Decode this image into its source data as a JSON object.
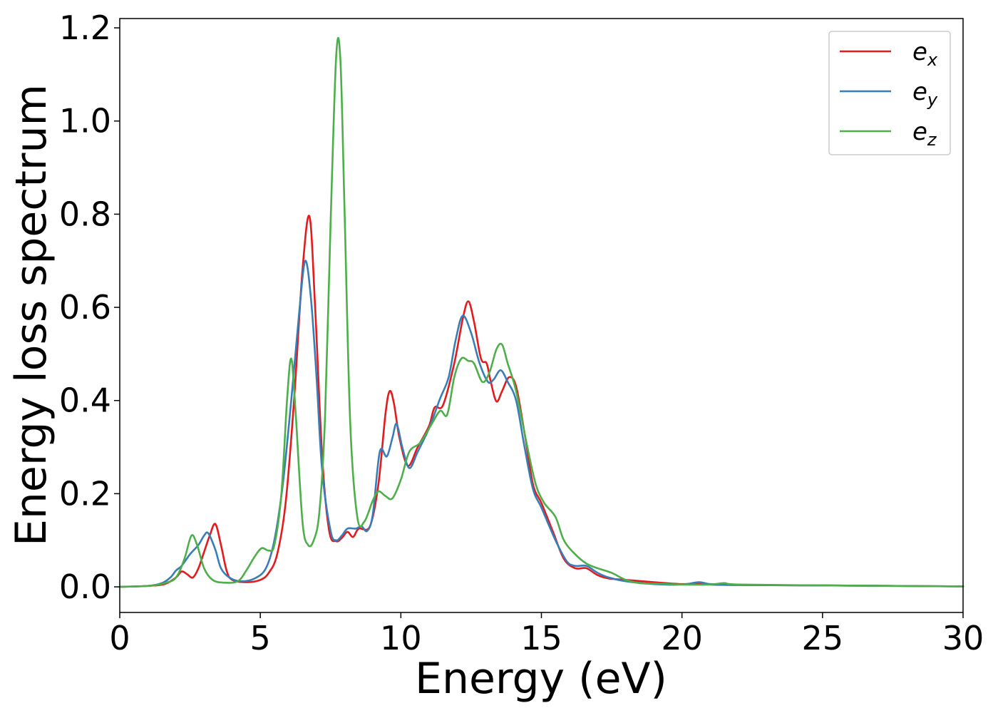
{
  "chart_data": {
    "type": "line",
    "title": "",
    "xlabel": "Energy (eV)",
    "ylabel": "Energy loss spectrum",
    "xlim": [
      0,
      30
    ],
    "ylim": [
      -0.055,
      1.22
    ],
    "x_ticks": [
      0,
      5,
      10,
      15,
      20,
      25,
      30
    ],
    "x_tick_labels": [
      "0",
      "5",
      "10",
      "15",
      "20",
      "25",
      "30"
    ],
    "y_ticks": [
      0.0,
      0.2,
      0.4,
      0.6,
      0.8,
      1.0,
      1.2
    ],
    "y_tick_labels": [
      "0.0",
      "0.2",
      "0.4",
      "0.6",
      "0.8",
      "1.0",
      "1.2"
    ],
    "grid": false,
    "legend_position": "top-right",
    "series": [
      {
        "name_base": "e",
        "name_sub": "x",
        "color": "#e41a1c",
        "points": [
          [
            0,
            0
          ],
          [
            1,
            0.002
          ],
          [
            1.6,
            0.006
          ],
          [
            2.0,
            0.02
          ],
          [
            2.2,
            0.033
          ],
          [
            2.4,
            0.027
          ],
          [
            2.6,
            0.02
          ],
          [
            2.8,
            0.04
          ],
          [
            3.0,
            0.075
          ],
          [
            3.2,
            0.11
          ],
          [
            3.4,
            0.135
          ],
          [
            3.6,
            0.09
          ],
          [
            3.8,
            0.035
          ],
          [
            4.0,
            0.015
          ],
          [
            4.5,
            0.01
          ],
          [
            5.0,
            0.015
          ],
          [
            5.3,
            0.03
          ],
          [
            5.6,
            0.07
          ],
          [
            5.9,
            0.18
          ],
          [
            6.2,
            0.4
          ],
          [
            6.5,
            0.68
          ],
          [
            6.75,
            0.795
          ],
          [
            6.95,
            0.6
          ],
          [
            7.2,
            0.28
          ],
          [
            7.45,
            0.12
          ],
          [
            7.7,
            0.098
          ],
          [
            7.9,
            0.105
          ],
          [
            8.1,
            0.118
          ],
          [
            8.3,
            0.107
          ],
          [
            8.5,
            0.125
          ],
          [
            8.9,
            0.13
          ],
          [
            9.2,
            0.22
          ],
          [
            9.45,
            0.37
          ],
          [
            9.6,
            0.42
          ],
          [
            9.75,
            0.395
          ],
          [
            9.95,
            0.32
          ],
          [
            10.25,
            0.26
          ],
          [
            10.6,
            0.3
          ],
          [
            11.0,
            0.345
          ],
          [
            11.2,
            0.385
          ],
          [
            11.5,
            0.39
          ],
          [
            11.9,
            0.48
          ],
          [
            12.2,
            0.575
          ],
          [
            12.4,
            0.613
          ],
          [
            12.6,
            0.57
          ],
          [
            12.85,
            0.49
          ],
          [
            13.05,
            0.48
          ],
          [
            13.2,
            0.44
          ],
          [
            13.4,
            0.398
          ],
          [
            13.6,
            0.42
          ],
          [
            13.85,
            0.45
          ],
          [
            14.1,
            0.43
          ],
          [
            14.4,
            0.33
          ],
          [
            14.7,
            0.22
          ],
          [
            15.0,
            0.18
          ],
          [
            15.4,
            0.12
          ],
          [
            15.8,
            0.06
          ],
          [
            16.2,
            0.04
          ],
          [
            16.6,
            0.04
          ],
          [
            17.0,
            0.025
          ],
          [
            17.4,
            0.018
          ],
          [
            18.0,
            0.015
          ],
          [
            19.0,
            0.01
          ],
          [
            20.0,
            0.006
          ],
          [
            20.6,
            0.008
          ],
          [
            21.0,
            0.005
          ],
          [
            22.0,
            0.004
          ],
          [
            25.0,
            0.003
          ],
          [
            30.0,
            0.001
          ]
        ]
      },
      {
        "name_base": "e",
        "name_sub": "y",
        "color": "#377eb8",
        "points": [
          [
            0,
            0
          ],
          [
            1,
            0.002
          ],
          [
            1.5,
            0.008
          ],
          [
            1.8,
            0.02
          ],
          [
            2.0,
            0.035
          ],
          [
            2.2,
            0.045
          ],
          [
            2.5,
            0.07
          ],
          [
            2.8,
            0.09
          ],
          [
            3.0,
            0.11
          ],
          [
            3.15,
            0.115
          ],
          [
            3.4,
            0.08
          ],
          [
            3.6,
            0.04
          ],
          [
            3.9,
            0.02
          ],
          [
            4.3,
            0.012
          ],
          [
            4.8,
            0.018
          ],
          [
            5.2,
            0.04
          ],
          [
            5.5,
            0.1
          ],
          [
            5.8,
            0.22
          ],
          [
            6.1,
            0.4
          ],
          [
            6.4,
            0.6
          ],
          [
            6.6,
            0.7
          ],
          [
            6.8,
            0.62
          ],
          [
            7.0,
            0.45
          ],
          [
            7.2,
            0.25
          ],
          [
            7.5,
            0.12
          ],
          [
            7.7,
            0.1
          ],
          [
            7.9,
            0.11
          ],
          [
            8.1,
            0.125
          ],
          [
            8.4,
            0.125
          ],
          [
            8.6,
            0.13
          ],
          [
            8.8,
            0.12
          ],
          [
            9.0,
            0.155
          ],
          [
            9.25,
            0.29
          ],
          [
            9.5,
            0.28
          ],
          [
            9.7,
            0.32
          ],
          [
            9.85,
            0.35
          ],
          [
            10.05,
            0.3
          ],
          [
            10.3,
            0.255
          ],
          [
            10.6,
            0.29
          ],
          [
            11.0,
            0.34
          ],
          [
            11.4,
            0.405
          ],
          [
            11.7,
            0.45
          ],
          [
            11.95,
            0.53
          ],
          [
            12.2,
            0.582
          ],
          [
            12.5,
            0.545
          ],
          [
            12.8,
            0.48
          ],
          [
            13.1,
            0.44
          ],
          [
            13.3,
            0.445
          ],
          [
            13.55,
            0.465
          ],
          [
            13.8,
            0.44
          ],
          [
            14.1,
            0.4
          ],
          [
            14.4,
            0.3
          ],
          [
            14.7,
            0.21
          ],
          [
            15.0,
            0.17
          ],
          [
            15.5,
            0.1
          ],
          [
            15.9,
            0.055
          ],
          [
            16.2,
            0.045
          ],
          [
            16.6,
            0.045
          ],
          [
            17.0,
            0.03
          ],
          [
            17.4,
            0.02
          ],
          [
            18.0,
            0.012
          ],
          [
            19.0,
            0.006
          ],
          [
            20.0,
            0.005
          ],
          [
            20.6,
            0.01
          ],
          [
            21.0,
            0.006
          ],
          [
            22.0,
            0.004
          ],
          [
            25.0,
            0.003
          ],
          [
            30.0,
            0.001
          ]
        ]
      },
      {
        "name_base": "e",
        "name_sub": "z",
        "color": "#4daf4a",
        "points": [
          [
            0,
            0
          ],
          [
            1.0,
            0.002
          ],
          [
            1.6,
            0.008
          ],
          [
            2.0,
            0.02
          ],
          [
            2.3,
            0.06
          ],
          [
            2.55,
            0.11
          ],
          [
            2.75,
            0.09
          ],
          [
            3.0,
            0.04
          ],
          [
            3.3,
            0.015
          ],
          [
            3.7,
            0.009
          ],
          [
            4.2,
            0.012
          ],
          [
            4.5,
            0.035
          ],
          [
            4.8,
            0.065
          ],
          [
            5.05,
            0.083
          ],
          [
            5.3,
            0.078
          ],
          [
            5.5,
            0.09
          ],
          [
            5.75,
            0.2
          ],
          [
            5.95,
            0.4
          ],
          [
            6.1,
            0.49
          ],
          [
            6.25,
            0.38
          ],
          [
            6.5,
            0.14
          ],
          [
            6.7,
            0.09
          ],
          [
            6.9,
            0.1
          ],
          [
            7.1,
            0.16
          ],
          [
            7.3,
            0.36
          ],
          [
            7.5,
            0.78
          ],
          [
            7.7,
            1.14
          ],
          [
            7.85,
            1.13
          ],
          [
            8.0,
            0.8
          ],
          [
            8.2,
            0.35
          ],
          [
            8.45,
            0.15
          ],
          [
            8.7,
            0.14
          ],
          [
            9.0,
            0.185
          ],
          [
            9.2,
            0.205
          ],
          [
            9.45,
            0.195
          ],
          [
            9.7,
            0.19
          ],
          [
            10.0,
            0.23
          ],
          [
            10.3,
            0.29
          ],
          [
            10.7,
            0.31
          ],
          [
            11.1,
            0.35
          ],
          [
            11.4,
            0.378
          ],
          [
            11.65,
            0.37
          ],
          [
            11.9,
            0.45
          ],
          [
            12.15,
            0.49
          ],
          [
            12.4,
            0.485
          ],
          [
            12.6,
            0.48
          ],
          [
            12.9,
            0.44
          ],
          [
            13.15,
            0.46
          ],
          [
            13.4,
            0.51
          ],
          [
            13.6,
            0.52
          ],
          [
            13.8,
            0.48
          ],
          [
            14.1,
            0.42
          ],
          [
            14.5,
            0.3
          ],
          [
            14.8,
            0.22
          ],
          [
            15.1,
            0.18
          ],
          [
            15.5,
            0.15
          ],
          [
            15.8,
            0.1
          ],
          [
            16.2,
            0.07
          ],
          [
            16.6,
            0.05
          ],
          [
            17.0,
            0.04
          ],
          [
            17.5,
            0.03
          ],
          [
            18.0,
            0.015
          ],
          [
            18.5,
            0.008
          ],
          [
            19.0,
            0.007
          ],
          [
            20.0,
            0.005
          ],
          [
            21.0,
            0.005
          ],
          [
            21.5,
            0.008
          ],
          [
            22.0,
            0.005
          ],
          [
            25.0,
            0.003
          ],
          [
            30.0,
            0.001
          ]
        ]
      }
    ]
  }
}
